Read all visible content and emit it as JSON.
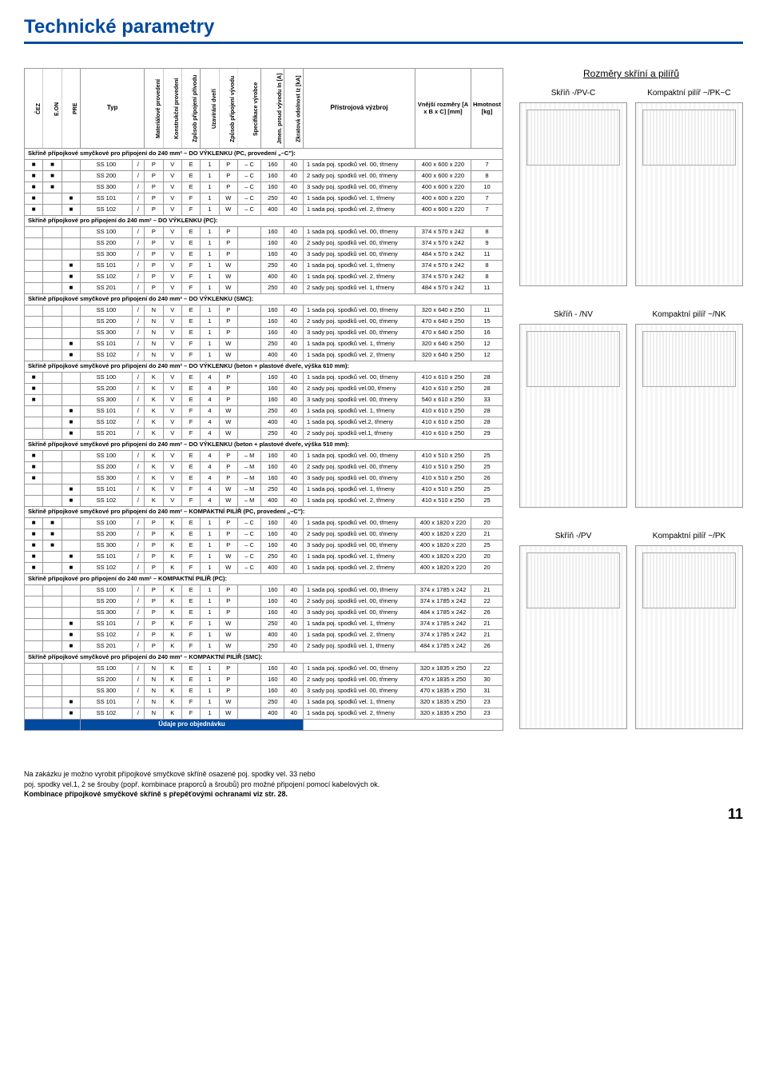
{
  "title": "Technické parametry",
  "headers": {
    "col1": "ČEZ",
    "col2": "E.ON",
    "col3": "PRE",
    "typ": "Typ",
    "v1": "Materiálové provedení",
    "v2": "Konstrukční provedení",
    "v3": "Způsob připojení přívodu",
    "v4": "Uzavírání dveří",
    "v5": "Způsob připojení vývodu",
    "v6": "Specifikace výrobce",
    "v7": "Jmen. proud vývodu In [A]",
    "v8": "Zkratová odolnost Iz [kA]",
    "pristroj": "Přístrojová výzbroj",
    "rozm": "Vnější rozměry [A x B x C] [mm]",
    "hmot": "Hmotnost [kg]"
  },
  "sections": [
    {
      "label": "Skříně přípojkové smyčkové pro připojení do 240 mm² – DO VÝKLENKU (PC, provedení „–C\"):",
      "rows": [
        {
          "c": [
            "■",
            "■",
            "",
            "SS 100",
            "/",
            "P",
            "V",
            "E",
            "1",
            "P",
            "– C",
            "160",
            "40",
            "1 sada poj. spodků vel. 00, třmeny",
            "400 x 600 x 220",
            "7"
          ]
        },
        {
          "c": [
            "■",
            "■",
            "",
            "SS 200",
            "/",
            "P",
            "V",
            "E",
            "1",
            "P",
            "– C",
            "160",
            "40",
            "2 sady poj. spodků vel. 00, třmeny",
            "400 x 600 x 220",
            "8"
          ]
        },
        {
          "c": [
            "■",
            "■",
            "",
            "SS 300",
            "/",
            "P",
            "V",
            "E",
            "1",
            "P",
            "– C",
            "160",
            "40",
            "3 sady poj. spodků vel. 00, třmeny",
            "400 x 600 x 220",
            "10"
          ]
        },
        {
          "c": [
            "■",
            "",
            "■",
            "SS 101",
            "/",
            "P",
            "V",
            "F",
            "1",
            "W",
            "– C",
            "250",
            "40",
            "1 sada poj. spodků vel. 1, třmeny",
            "400 x 600 x 220",
            "7"
          ]
        },
        {
          "c": [
            "■",
            "",
            "■",
            "SS 102",
            "/",
            "P",
            "V",
            "F",
            "1",
            "W",
            "– C",
            "400",
            "40",
            "1 sada poj. spodků vel. 2, třmeny",
            "400 x 600 x 220",
            "7"
          ]
        }
      ]
    },
    {
      "label": "Skříně přípojkové pro připojení do 240 mm² – DO VÝKLENKU (PC):",
      "rows": [
        {
          "c": [
            "",
            "",
            "",
            "SS 100",
            "/",
            "P",
            "V",
            "E",
            "1",
            "P",
            "",
            "160",
            "40",
            "1 sada poj. spodků vel. 00, třmeny",
            "374 x 570 x 242",
            "8"
          ]
        },
        {
          "c": [
            "",
            "",
            "",
            "SS 200",
            "/",
            "P",
            "V",
            "E",
            "1",
            "P",
            "",
            "160",
            "40",
            "2 sady poj. spodků vel. 00, třmeny",
            "374 x 570 x 242",
            "9"
          ]
        },
        {
          "c": [
            "",
            "",
            "",
            "SS 300",
            "/",
            "P",
            "V",
            "E",
            "1",
            "P",
            "",
            "160",
            "40",
            "3 sady poj. spodků vel. 00, třmeny",
            "484 x 570 x 242",
            "11"
          ]
        },
        {
          "c": [
            "",
            "",
            "■",
            "SS 101",
            "/",
            "P",
            "V",
            "F",
            "1",
            "W",
            "",
            "250",
            "40",
            "1 sada poj. spodků vel. 1, třmeny",
            "374 x 570 x 242",
            "8"
          ]
        },
        {
          "c": [
            "",
            "",
            "■",
            "SS 102",
            "/",
            "P",
            "V",
            "F",
            "1",
            "W",
            "",
            "400",
            "40",
            "1 sada poj. spodků vel. 2, třmeny",
            "374 x 570 x 242",
            "8"
          ]
        },
        {
          "c": [
            "",
            "",
            "■",
            "SS 201",
            "/",
            "P",
            "V",
            "F",
            "1",
            "W",
            "",
            "250",
            "40",
            "2 sady poj. spodků vel. 1, třmeny",
            "484 x 570 x 242",
            "11"
          ]
        }
      ]
    },
    {
      "label": "Skříně přípojkové smyčkové pro připojení do 240 mm² – DO VÝKLENKU (SMC):",
      "rows": [
        {
          "c": [
            "",
            "",
            "",
            "SS 100",
            "/",
            "N",
            "V",
            "E",
            "1",
            "P",
            "",
            "160",
            "40",
            "1 sada poj. spodků vel. 00, třmeny",
            "320 x 640 x 250",
            "11"
          ]
        },
        {
          "c": [
            "",
            "",
            "",
            "SS 200",
            "/",
            "N",
            "V",
            "E",
            "1",
            "P",
            "",
            "160",
            "40",
            "2 sady poj. spodků vel. 00, třmeny",
            "470 x 640 x 250",
            "15"
          ]
        },
        {
          "c": [
            "",
            "",
            "",
            "SS 300",
            "/",
            "N",
            "V",
            "E",
            "1",
            "P",
            "",
            "160",
            "40",
            "3 sady poj. spodků vel. 00, třmeny",
            "470 x 640 x 250",
            "16"
          ]
        },
        {
          "c": [
            "",
            "",
            "■",
            "SS 101",
            "/",
            "N",
            "V",
            "F",
            "1",
            "W",
            "",
            "250",
            "40",
            "1 sada poj. spodků vel. 1, třmeny",
            "320 x 640 x 250",
            "12"
          ]
        },
        {
          "c": [
            "",
            "",
            "■",
            "SS 102",
            "/",
            "N",
            "V",
            "F",
            "1",
            "W",
            "",
            "400",
            "40",
            "1 sada poj. spodků vel. 2, třmeny",
            "320 x 640 x 250",
            "12"
          ]
        }
      ]
    },
    {
      "label": "Skříně přípojkové smyčkové pro připojení do 240 mm² – DO VÝKLENKU (beton + plastové dveře, výška 610 mm):",
      "rows": [
        {
          "c": [
            "■",
            "",
            "",
            "SS 100",
            "/",
            "K",
            "V",
            "E",
            "4",
            "P",
            "",
            "160",
            "40",
            "1 sada poj. spodků vel. 00, třmeny",
            "410 x 610 x 250",
            "28"
          ]
        },
        {
          "c": [
            "■",
            "",
            "",
            "SS 200",
            "/",
            "K",
            "V",
            "E",
            "4",
            "P",
            "",
            "160",
            "40",
            "2 sady poj. spodků vel.00, třmeny",
            "410 x 610 x 250",
            "28"
          ]
        },
        {
          "c": [
            "■",
            "",
            "",
            "SS 300",
            "/",
            "K",
            "V",
            "E",
            "4",
            "P",
            "",
            "160",
            "40",
            "3 sady poj. spodků vel. 00, třmeny",
            "540 x 610 x 250",
            "33"
          ]
        },
        {
          "c": [
            "",
            "",
            "■",
            "SS 101",
            "/",
            "K",
            "V",
            "F",
            "4",
            "W",
            "",
            "250",
            "40",
            "1 sada poj. spodků vel. 1, třmeny",
            "410 x 610 x 250",
            "28"
          ]
        },
        {
          "c": [
            "",
            "",
            "■",
            "SS 102",
            "/",
            "K",
            "V",
            "F",
            "4",
            "W",
            "",
            "400",
            "40",
            "1 sada poj. spodků vel.2, třmeny",
            "410 x 610 x 250",
            "28"
          ]
        },
        {
          "c": [
            "",
            "",
            "■",
            "SS 201",
            "/",
            "K",
            "V",
            "F",
            "4",
            "W",
            "",
            "250",
            "40",
            "2 sady poj. spodků vel.1, třmeny",
            "410 x 610 x 250",
            "29"
          ]
        }
      ]
    },
    {
      "label": "Skříně přípojkové smyčkové pro připojení do 240 mm² – DO VÝKLENKU (beton + plastové dveře, výška 510 mm):",
      "rows": [
        {
          "c": [
            "■",
            "",
            "",
            "SS 100",
            "/",
            "K",
            "V",
            "E",
            "4",
            "P",
            "– M",
            "160",
            "40",
            "1 sada poj. spodků vel. 00, třmeny",
            "410 x 510 x 250",
            "25"
          ]
        },
        {
          "c": [
            "■",
            "",
            "",
            "SS 200",
            "/",
            "K",
            "V",
            "E",
            "4",
            "P",
            "– M",
            "160",
            "40",
            "2 sady poj. spodků vel. 00, třmeny",
            "410 x 510 x 250",
            "25"
          ]
        },
        {
          "c": [
            "■",
            "",
            "",
            "SS 300",
            "/",
            "K",
            "V",
            "E",
            "4",
            "P",
            "– M",
            "160",
            "40",
            "3 sady poj. spodků vel. 00, třmeny",
            "410 x 510 x 250",
            "26"
          ]
        },
        {
          "c": [
            "",
            "",
            "■",
            "SS 101",
            "/",
            "K",
            "V",
            "F",
            "4",
            "W",
            "– M",
            "250",
            "40",
            "1 sada poj. spodků vel. 1, třmeny",
            "410 x 510 x 250",
            "25"
          ]
        },
        {
          "c": [
            "",
            "",
            "■",
            "SS 102",
            "/",
            "K",
            "V",
            "F",
            "4",
            "W",
            "– M",
            "400",
            "40",
            "1 sada poj. spodků vel. 2, třmeny",
            "410 x 510 x 250",
            "25"
          ]
        }
      ]
    },
    {
      "label": "Skříně přípojkové smyčkové pro připojení do 240 mm² – KOMPAKTNÍ PILÍŘ (PC, provedení „–C\"):",
      "rows": [
        {
          "c": [
            "■",
            "■",
            "",
            "SS 100",
            "/",
            "P",
            "K",
            "E",
            "1",
            "P",
            "– C",
            "160",
            "40",
            "1 sada poj. spodků vel. 00, třmeny",
            "400 x 1820 x 220",
            "20"
          ]
        },
        {
          "c": [
            "■",
            "■",
            "",
            "SS 200",
            "/",
            "P",
            "K",
            "E",
            "1",
            "P",
            "– C",
            "160",
            "40",
            "2 sady poj. spodků vel. 00, třmeny",
            "400 x 1820 x 220",
            "21"
          ]
        },
        {
          "c": [
            "■",
            "■",
            "",
            "SS 300",
            "/",
            "P",
            "K",
            "E",
            "1",
            "P",
            "– C",
            "160",
            "40",
            "3 sady poj. spodků vel. 00, třmeny",
            "400 x 1820 x 220",
            "25"
          ]
        },
        {
          "c": [
            "■",
            "",
            "■",
            "SS 101",
            "/",
            "P",
            "K",
            "F",
            "1",
            "W",
            "– C",
            "250",
            "40",
            "1 sada poj. spodků vel. 1, třmeny",
            "400 x 1820 x 220",
            "20"
          ]
        },
        {
          "c": [
            "■",
            "",
            "■",
            "SS 102",
            "/",
            "P",
            "K",
            "F",
            "1",
            "W",
            "– C",
            "400",
            "40",
            "1 sada poj. spodků vel. 2, třmeny",
            "400 x 1820 x 220",
            "20"
          ]
        }
      ]
    },
    {
      "label": "Skříně přípojkové pro připojení do 240 mm² – KOMPAKTNÍ PILÍŘ (PC):",
      "rows": [
        {
          "c": [
            "",
            "",
            "",
            "SS 100",
            "/",
            "P",
            "K",
            "E",
            "1",
            "P",
            "",
            "160",
            "40",
            "1 sada poj. spodků vel. 00, třmeny",
            "374 x 1785 x 242",
            "21"
          ]
        },
        {
          "c": [
            "",
            "",
            "",
            "SS 200",
            "/",
            "P",
            "K",
            "E",
            "1",
            "P",
            "",
            "160",
            "40",
            "2 sady poj. spodků vel. 00, třmeny",
            "374 x 1785 x 242",
            "22"
          ]
        },
        {
          "c": [
            "",
            "",
            "",
            "SS 300",
            "/",
            "P",
            "K",
            "E",
            "1",
            "P",
            "",
            "160",
            "40",
            "3 sady poj. spodků vel. 00, třmeny",
            "484 x 1785 x 242",
            "26"
          ]
        },
        {
          "c": [
            "",
            "",
            "■",
            "SS 101",
            "/",
            "P",
            "K",
            "F",
            "1",
            "W",
            "",
            "250",
            "40",
            "1 sada poj. spodků vel. 1, třmeny",
            "374 x 1785 x 242",
            "21"
          ]
        },
        {
          "c": [
            "",
            "",
            "■",
            "SS 102",
            "/",
            "P",
            "K",
            "F",
            "1",
            "W",
            "",
            "400",
            "40",
            "1 sada poj. spodků vel. 2, třmeny",
            "374 x 1785 x 242",
            "21"
          ]
        },
        {
          "c": [
            "",
            "",
            "■",
            "SS 201",
            "/",
            "P",
            "K",
            "F",
            "1",
            "W",
            "",
            "250",
            "40",
            "2 sady poj. spodků vel. 1, třmeny",
            "484 x 1785 x 242",
            "26"
          ]
        }
      ]
    },
    {
      "label": "Skříně přípojkové smyčkové pro připojení do 240 mm² – KOMPAKTNÍ PILÍŘ (SMC):",
      "rows": [
        {
          "c": [
            "",
            "",
            "",
            "SS 100",
            "/",
            "N",
            "K",
            "E",
            "1",
            "P",
            "",
            "160",
            "40",
            "1 sada poj. spodků vel. 00, třmeny",
            "320 x 1835 x 250",
            "22"
          ]
        },
        {
          "c": [
            "",
            "",
            "",
            "SS 200",
            "/",
            "N",
            "K",
            "E",
            "1",
            "P",
            "",
            "160",
            "40",
            "2 sady poj. spodků vel. 00, třmeny",
            "470 x 1835 x 250",
            "30"
          ]
        },
        {
          "c": [
            "",
            "",
            "",
            "SS 300",
            "/",
            "N",
            "K",
            "E",
            "1",
            "P",
            "",
            "160",
            "40",
            "3 sady poj. spodků vel. 00, třmeny",
            "470 x 1835 x 250",
            "31"
          ]
        },
        {
          "c": [
            "",
            "",
            "■",
            "SS 101",
            "/",
            "N",
            "K",
            "F",
            "1",
            "W",
            "",
            "250",
            "40",
            "1 sada poj. spodků vel. 1, třmeny",
            "320 x 1835 x 250",
            "23"
          ]
        },
        {
          "c": [
            "",
            "",
            "■",
            "SS 102",
            "/",
            "N",
            "K",
            "F",
            "1",
            "W",
            "",
            "400",
            "40",
            "1 sada poj. spodků vel. 2, třmeny",
            "320 x 1835 x 250",
            "23"
          ]
        }
      ]
    }
  ],
  "footer_label": "Údaje pro objednávku",
  "right": {
    "title": "Rozměry skříní a pilířů",
    "rows": [
      {
        "l": "Skříň -/PV-C",
        "r": "Kompaktní pilíř −/PK−C",
        "h": "tall"
      },
      {
        "l": "Skříň - /NV",
        "r": "Kompaktní pilíř −/NK",
        "h": "tall"
      },
      {
        "l": "Skříň -/PV",
        "r": "Kompaktní pilíř −/PK",
        "h": "tall"
      }
    ]
  },
  "notes": {
    "l1": "Na zakázku je možno vyrobit přípojkové smyčkové skříně osazené poj. spodky vel. 33 nebo",
    "l2": "poj. spodky vel.1, 2 se šrouby (popř. kombinace praporců a šroubů) pro možné připojení pomocí kabelových ok.",
    "l3": "Kombinace přípojkové smyčkové skříně s přepěťovými ochranami viz str. 28."
  },
  "page_num": "11"
}
